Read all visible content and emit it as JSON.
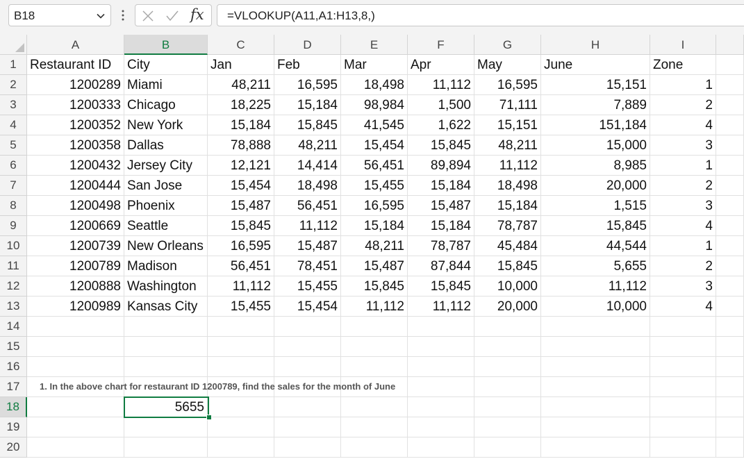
{
  "formula_bar": {
    "name_box": "B18",
    "fx_label": "fx",
    "formula": "=VLOOKUP(A11,A1:H13,8,)",
    "icons": [
      "chevron-down-icon",
      "more-vertical-icon",
      "cancel-icon",
      "check-icon",
      "function-icon"
    ]
  },
  "grid": {
    "columns": [
      "A",
      "B",
      "C",
      "D",
      "E",
      "F",
      "G",
      "H",
      "I"
    ],
    "rows": [
      "1",
      "2",
      "3",
      "4",
      "5",
      "6",
      "7",
      "8",
      "9",
      "10",
      "11",
      "12",
      "13",
      "14",
      "15",
      "16",
      "17",
      "18",
      "19",
      "20"
    ],
    "headers": [
      "Restaurant ID",
      "City",
      "Jan",
      "Feb",
      "Mar",
      "Apr",
      "May",
      "June",
      "Zone"
    ],
    "data": [
      [
        "1200289",
        "Miami",
        "48,211",
        "16,595",
        "18,498",
        "11,112",
        "16,595",
        "15,151",
        "1"
      ],
      [
        "1200333",
        "Chicago",
        "18,225",
        "15,184",
        "98,984",
        "1,500",
        "71,111",
        "7,889",
        "2"
      ],
      [
        "1200352",
        "New York",
        "15,184",
        "15,845",
        "41,545",
        "1,622",
        "15,151",
        "151,184",
        "4"
      ],
      [
        "1200358",
        "Dallas",
        "78,888",
        "48,211",
        "15,454",
        "15,845",
        "48,211",
        "15,000",
        "3"
      ],
      [
        "1200432",
        "Jersey City",
        "12,121",
        "14,414",
        "56,451",
        "89,894",
        "11,112",
        "8,985",
        "1"
      ],
      [
        "1200444",
        "San Jose",
        "15,454",
        "18,498",
        "15,455",
        "15,184",
        "18,498",
        "20,000",
        "2"
      ],
      [
        "1200498",
        "Phoenix",
        "15,487",
        "56,451",
        "16,595",
        "15,487",
        "15,184",
        "1,515",
        "3"
      ],
      [
        "1200669",
        "Seattle",
        "15,845",
        "11,112",
        "15,184",
        "15,184",
        "78,787",
        "15,845",
        "4"
      ],
      [
        "1200739",
        "New Orleans",
        "16,595",
        "15,487",
        "48,211",
        "78,787",
        "45,484",
        "44,544",
        "1"
      ],
      [
        "1200789",
        "Madison",
        "56,451",
        "78,451",
        "15,487",
        "87,844",
        "15,845",
        "5,655",
        "2"
      ],
      [
        "1200888",
        "Washington",
        "11,112",
        "15,455",
        "15,845",
        "15,845",
        "10,000",
        "11,112",
        "3"
      ],
      [
        "1200989",
        "Kansas City",
        "15,455",
        "15,454",
        "11,112",
        "11,112",
        "20,000",
        "10,000",
        "4"
      ]
    ],
    "note": "1. In the above chart for restaurant ID 1200789, find the sales for the month of June",
    "answer": "5655",
    "selected_cell": "B18",
    "selection_color": "#107c41"
  }
}
